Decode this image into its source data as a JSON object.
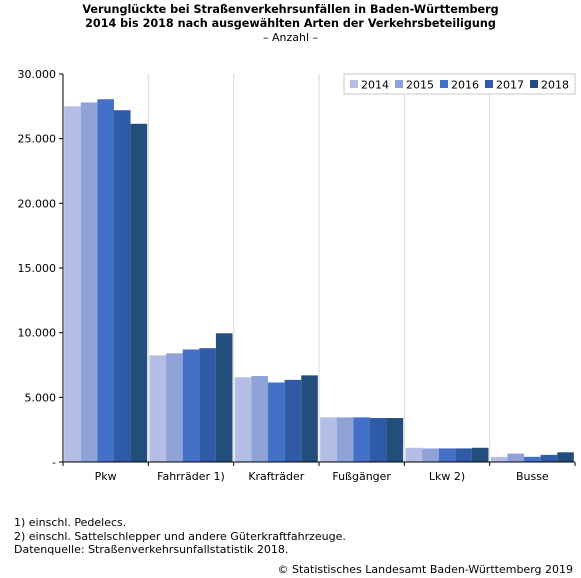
{
  "chart_data": {
    "type": "bar",
    "title_lines": [
      "Verunglückte bei Straßenverkehrsunfällen in Baden-Württemberg",
      "2014 bis 2018 nach ausgewählten Arten der Verkehrsbeteiligung"
    ],
    "subtitle": "– Anzahl –",
    "categories": [
      "Pkw",
      "Fahrräder 1)",
      "Krafträder",
      "Fußgänger",
      "Lkw 2)",
      "Busse"
    ],
    "series": [
      {
        "name": "2014",
        "color": "#b4bde4",
        "values": [
          27500,
          8250,
          6550,
          3450,
          1100,
          400
        ]
      },
      {
        "name": "2015",
        "color": "#8ea2d8",
        "values": [
          27800,
          8400,
          6650,
          3450,
          1050,
          650
        ]
      },
      {
        "name": "2016",
        "color": "#4470ca",
        "values": [
          28050,
          8700,
          6150,
          3450,
          1050,
          400
        ]
      },
      {
        "name": "2017",
        "color": "#2f5aa8",
        "values": [
          27200,
          8800,
          6350,
          3400,
          1050,
          550
        ]
      },
      {
        "name": "2018",
        "color": "#234e7c",
        "values": [
          26150,
          9950,
          6700,
          3400,
          1100,
          750
        ]
      }
    ],
    "y_ticks": [
      {
        "value": 0,
        "label": "-"
      },
      {
        "value": 5000,
        "label": "5.000"
      },
      {
        "value": 10000,
        "label": "10.000"
      },
      {
        "value": 15000,
        "label": "15.000"
      },
      {
        "value": 20000,
        "label": "20.000"
      },
      {
        "value": 25000,
        "label": "25.000"
      },
      {
        "value": 30000,
        "label": "30.000"
      }
    ],
    "ylim": [
      0,
      30000
    ],
    "grid": true,
    "legend_position": "top-right"
  },
  "footnotes": [
    "1) einschl. Pedelecs.",
    "2) einschl. Sattelschlepper und andere Güterkraftfahrzeuge.",
    "Datenquelle: Straßenverkehrsunfallstatistik 2018."
  ],
  "copyright": "© Statistisches Landesamt Baden-Württemberg 2019"
}
